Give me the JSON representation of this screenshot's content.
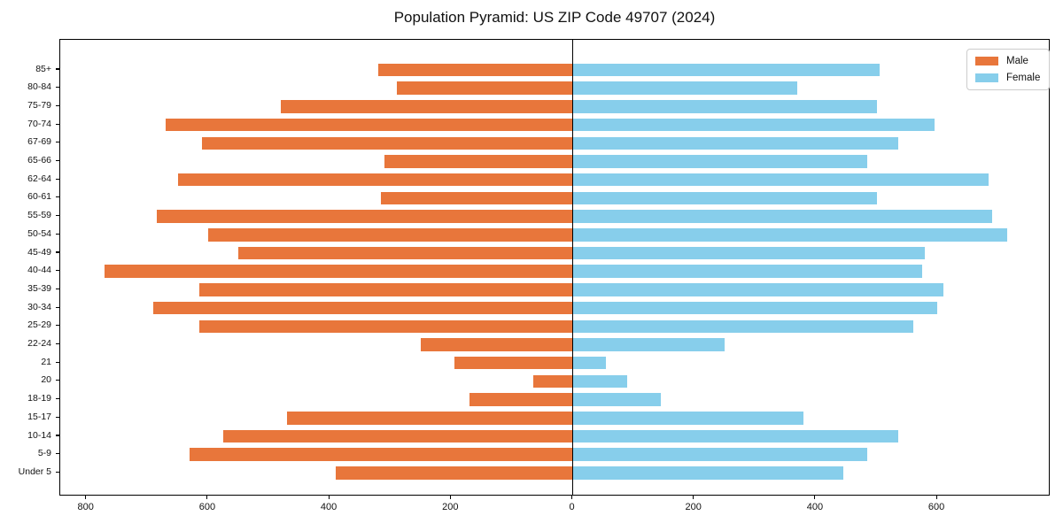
{
  "chart_data": {
    "type": "bar",
    "variant": "population-pyramid",
    "title": "Population Pyramid: US ZIP Code 49707 (2024)",
    "categories": [
      "85+",
      "80-84",
      "75-79",
      "70-74",
      "67-69",
      "65-66",
      "62-64",
      "60-61",
      "55-59",
      "50-54",
      "45-49",
      "40-44",
      "35-39",
      "30-34",
      "25-29",
      "22-24",
      "21",
      "20",
      "18-19",
      "15-17",
      "10-14",
      "5-9",
      "Under 5"
    ],
    "series": [
      {
        "name": "Male",
        "color": "#e8763b",
        "direction": "left",
        "values": [
          320,
          290,
          480,
          670,
          610,
          310,
          650,
          315,
          685,
          600,
          550,
          770,
          615,
          690,
          615,
          250,
          195,
          65,
          170,
          470,
          575,
          630,
          390
        ]
      },
      {
        "name": "Female",
        "color": "#87ceeb",
        "direction": "right",
        "values": [
          505,
          370,
          500,
          595,
          535,
          485,
          685,
          500,
          690,
          715,
          580,
          575,
          610,
          600,
          560,
          250,
          55,
          90,
          145,
          380,
          535,
          485,
          445
        ]
      }
    ],
    "x_ticks": [
      {
        "value": -800,
        "label": "800"
      },
      {
        "value": -600,
        "label": "600"
      },
      {
        "value": -400,
        "label": "400"
      },
      {
        "value": -200,
        "label": "200"
      },
      {
        "value": 0,
        "label": "0"
      },
      {
        "value": 200,
        "label": "200"
      },
      {
        "value": 400,
        "label": "400"
      },
      {
        "value": 600,
        "label": "600"
      }
    ],
    "xlim": [
      -845,
      786
    ],
    "center_line_x": 0,
    "grid": false,
    "legend": {
      "position": "upper-right",
      "entries": [
        "Male",
        "Female"
      ]
    }
  }
}
